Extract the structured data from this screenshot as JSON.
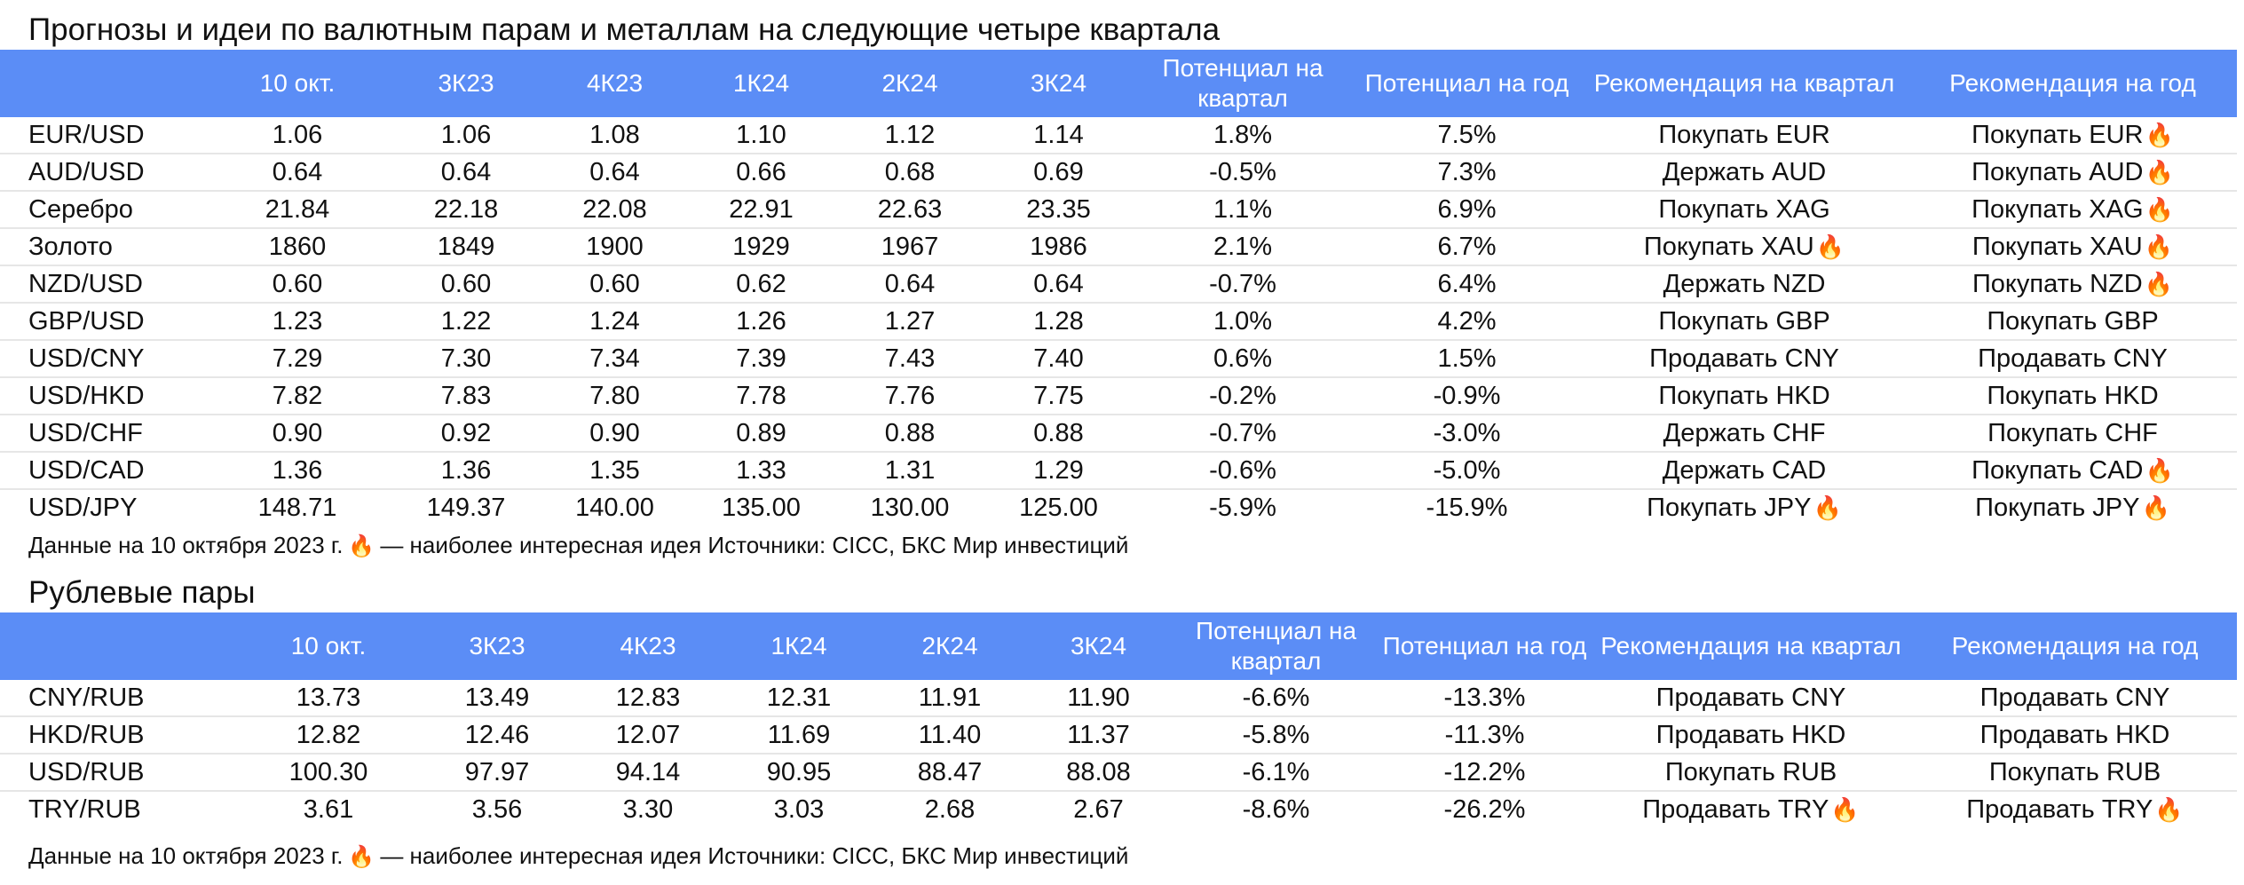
{
  "table1": {
    "title": "Прогнозы и идеи по валютным парам и металлам на следующие четыре квартала",
    "headers": [
      "",
      "10 окт.",
      "3К23",
      "4К23",
      "1К24",
      "2К24",
      "3К24",
      "Потенциал на квартал",
      "Потенциал на год",
      "Рекомендация на квартал",
      "Рекомендация на год"
    ],
    "rows": [
      [
        "EUR/USD",
        "1.06",
        "1.06",
        "1.08",
        "1.10",
        "1.12",
        "1.14",
        "1.8%",
        "7.5%",
        "Покупать EUR",
        "Покупать EUR"
      ],
      [
        "AUD/USD",
        "0.64",
        "0.64",
        "0.64",
        "0.66",
        "0.68",
        "0.69",
        "-0.5%",
        "7.3%",
        "Держать AUD",
        "Покупать AUD"
      ],
      [
        "Серебро",
        "21.84",
        "22.18",
        "22.08",
        "22.91",
        "22.63",
        "23.35",
        "1.1%",
        "6.9%",
        "Покупать XAG",
        "Покупать XAG"
      ],
      [
        "Золото",
        "1860",
        "1849",
        "1900",
        "1929",
        "1967",
        "1986",
        "2.1%",
        "6.7%",
        "Покупать XAU",
        "Покупать XAU"
      ],
      [
        "NZD/USD",
        "0.60",
        "0.60",
        "0.60",
        "0.62",
        "0.64",
        "0.64",
        "-0.7%",
        "6.4%",
        "Держать NZD",
        "Покупать NZD"
      ],
      [
        "GBP/USD",
        "1.23",
        "1.22",
        "1.24",
        "1.26",
        "1.27",
        "1.28",
        "1.0%",
        "4.2%",
        "Покупать GBP",
        "Покупать GBP"
      ],
      [
        "USD/CNY",
        "7.29",
        "7.30",
        "7.34",
        "7.39",
        "7.43",
        "7.40",
        "0.6%",
        "1.5%",
        "Продавать CNY",
        "Продавать CNY"
      ],
      [
        "USD/HKD",
        "7.82",
        "7.83",
        "7.80",
        "7.78",
        "7.76",
        "7.75",
        "-0.2%",
        "-0.9%",
        "Покупать HKD",
        "Покупать HKD"
      ],
      [
        "USD/CHF",
        "0.90",
        "0.92",
        "0.90",
        "0.89",
        "0.88",
        "0.88",
        "-0.7%",
        "-3.0%",
        "Держать CHF",
        "Покупать CHF"
      ],
      [
        "USD/CAD",
        "1.36",
        "1.36",
        "1.35",
        "1.33",
        "1.31",
        "1.29",
        "-0.6%",
        "-5.0%",
        "Держать CAD",
        "Покупать CAD"
      ],
      [
        "USD/JPY",
        "148.71",
        "149.37",
        "140.00",
        "135.00",
        "130.00",
        "125.00",
        "-5.9%",
        "-15.9%",
        "Покупать JPY",
        "Покупать JPY"
      ]
    ],
    "fire_q": [
      false,
      false,
      false,
      true,
      false,
      false,
      false,
      false,
      false,
      false,
      true
    ],
    "fire_y": [
      true,
      true,
      true,
      true,
      true,
      false,
      false,
      false,
      false,
      true,
      true
    ],
    "note_before": "Данные на 10 октября 2023 г.",
    "note_after": "— наиболее интересная идея Источники: CICC, БКС Мир инвестиций"
  },
  "table2": {
    "title": "Рублевые пары",
    "headers": [
      "",
      "10 окт.",
      "3К23",
      "4К23",
      "1К24",
      "2К24",
      "3К24",
      "Потенциал на квартал",
      "Потенциал на год",
      "Рекомендация на квартал",
      "Рекомендация на год"
    ],
    "rows": [
      [
        "CNY/RUB",
        "13.73",
        "13.49",
        "12.83",
        "12.31",
        "11.91",
        "11.90",
        "-6.6%",
        "-13.3%",
        "Продавать CNY",
        "Продавать CNY"
      ],
      [
        "HKD/RUB",
        "12.82",
        "12.46",
        "12.07",
        "11.69",
        "11.40",
        "11.37",
        "-5.8%",
        "-11.3%",
        "Продавать HKD",
        "Продавать HKD"
      ],
      [
        "USD/RUB",
        "100.30",
        "97.97",
        "94.14",
        "90.95",
        "88.47",
        "88.08",
        "-6.1%",
        "-12.2%",
        "Покупать RUB",
        "Покупать RUB"
      ],
      [
        "TRY/RUB",
        "3.61",
        "3.56",
        "3.30",
        "3.03",
        "2.68",
        "2.67",
        "-8.6%",
        "-26.2%",
        "Продавать TRY",
        "Продавать TRY"
      ]
    ],
    "fire_q": [
      false,
      false,
      false,
      true
    ],
    "fire_y": [
      false,
      false,
      false,
      true
    ],
    "note_before": "Данные на 10 октября 2023 г.",
    "note_after": "— наиболее интересная идея Источники: CICC, БКС Мир инвестиций"
  },
  "icons": {
    "hot_idea": "fire-icon",
    "fire_color": "#a81515",
    "header_color": "#5b8df6"
  }
}
